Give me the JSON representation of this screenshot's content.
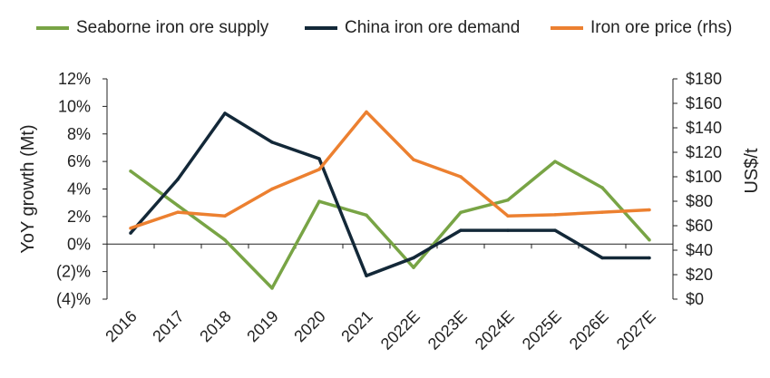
{
  "chart_data": {
    "type": "line",
    "categories": [
      "2016",
      "2017",
      "2018",
      "2019",
      "2020",
      "2021",
      "2022E",
      "2023E",
      "2024E",
      "2025E",
      "2026E",
      "2027E"
    ],
    "y_left": {
      "label": "YoY growth (Mt)",
      "lim": [
        -4,
        12
      ],
      "ticks": [
        12,
        10,
        8,
        6,
        4,
        2,
        0,
        -2,
        -4
      ],
      "tick_labels": [
        "12%",
        "10%",
        "8%",
        "6%",
        "4%",
        "2%",
        "0%",
        "(2)%",
        "(4)%"
      ]
    },
    "y_right": {
      "label": "US$/t",
      "lim": [
        0,
        180
      ],
      "ticks": [
        180,
        160,
        140,
        120,
        100,
        80,
        60,
        40,
        20,
        0
      ],
      "tick_labels": [
        "$180",
        "$160",
        "$140",
        "$120",
        "$100",
        "$80",
        "$60",
        "$40",
        "$20",
        "$0"
      ]
    },
    "series": [
      {
        "name": "Seaborne iron ore supply",
        "axis": "left",
        "color": "#78a445",
        "values": [
          5.3,
          2.8,
          0.3,
          -3.2,
          3.1,
          2.1,
          -1.7,
          2.3,
          3.2,
          6.0,
          4.1,
          0.3
        ]
      },
      {
        "name": "China iron ore demand",
        "axis": "left",
        "color": "#132838",
        "values": [
          0.8,
          4.7,
          9.5,
          7.4,
          6.2,
          -2.3,
          -1.0,
          1.0,
          1.0,
          1.0,
          -1.0,
          -1.0
        ]
      },
      {
        "name": "Iron ore price (rhs)",
        "axis": "right",
        "color": "#ec8030",
        "values": [
          58,
          71,
          68,
          90,
          106,
          153,
          114,
          100,
          68,
          69,
          71,
          73
        ]
      }
    ],
    "legend_position": "top",
    "grid": false
  }
}
